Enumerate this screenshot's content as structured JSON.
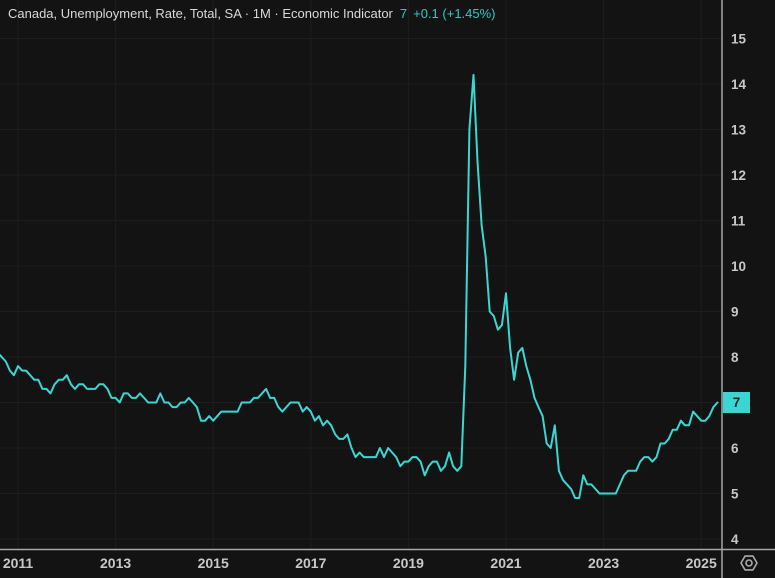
{
  "legend": {
    "title": "Canada, Unemployment, Rate, Total, SA · 1M · Economic Indicator",
    "value": "7",
    "change": "+0.1 (+1.45%)"
  },
  "y_axis": {
    "badge": "7"
  },
  "colors": {
    "background": "#131313",
    "grid": "#1e1e1e",
    "line": "#3bd6d1",
    "badge_bg": "#3bd6d1",
    "badge_text": "#0c2a2a",
    "axis_line": "#a8a8a8",
    "tick_text": "#c8c8c8",
    "title_text": "#d9d9d9",
    "accent_text": "#2fc9c4",
    "gear_icon": "#ababab"
  },
  "chart_data": {
    "type": "line",
    "title": "Canada, Unemployment, Rate, Total, SA · 1M · Economic Indicator",
    "series_name": "Canada Unemployment Rate (%, seasonally adjusted, monthly)",
    "frequency": "monthly",
    "start": "2010-08",
    "end": "2025-05",
    "ylim": [
      4,
      15
    ],
    "y_ticks": [
      4,
      5,
      6,
      7,
      8,
      9,
      10,
      11,
      12,
      13,
      14,
      15
    ],
    "x_tick_years": [
      2011,
      2013,
      2015,
      2017,
      2019,
      2021,
      2023,
      2025
    ],
    "grid": true,
    "legend_position": "top-left",
    "last_value": 7.0,
    "change_abs": "+0.1",
    "change_pct": "+1.45%",
    "peak": {
      "date": "2020-05",
      "value": 14.2
    },
    "trough": {
      "date": "2022-06",
      "value": 4.9
    },
    "values": [
      8.1,
      8.0,
      7.9,
      7.7,
      7.6,
      7.8,
      7.7,
      7.7,
      7.6,
      7.5,
      7.5,
      7.3,
      7.3,
      7.2,
      7.4,
      7.5,
      7.5,
      7.6,
      7.4,
      7.3,
      7.4,
      7.4,
      7.3,
      7.3,
      7.3,
      7.4,
      7.4,
      7.3,
      7.1,
      7.1,
      7.0,
      7.2,
      7.2,
      7.1,
      7.1,
      7.2,
      7.1,
      7.0,
      7.0,
      7.0,
      7.2,
      7.0,
      7.0,
      6.9,
      6.9,
      7.0,
      7.0,
      7.1,
      7.0,
      6.9,
      6.6,
      6.6,
      6.7,
      6.6,
      6.7,
      6.8,
      6.8,
      6.8,
      6.8,
      6.8,
      7.0,
      7.0,
      7.0,
      7.1,
      7.1,
      7.2,
      7.3,
      7.1,
      7.1,
      6.9,
      6.8,
      6.9,
      7.0,
      7.0,
      7.0,
      6.8,
      6.9,
      6.8,
      6.6,
      6.7,
      6.5,
      6.6,
      6.5,
      6.3,
      6.2,
      6.2,
      6.3,
      6.0,
      5.8,
      5.9,
      5.8,
      5.8,
      5.8,
      5.8,
      6.0,
      5.8,
      6.0,
      5.9,
      5.8,
      5.6,
      5.7,
      5.7,
      5.8,
      5.8,
      5.7,
      5.4,
      5.6,
      5.7,
      5.7,
      5.5,
      5.6,
      5.9,
      5.6,
      5.5,
      5.6,
      7.8,
      13.0,
      14.2,
      12.3,
      10.9,
      10.2,
      9.0,
      8.9,
      8.6,
      8.7,
      9.4,
      8.2,
      7.5,
      8.1,
      8.2,
      7.8,
      7.5,
      7.1,
      6.9,
      6.7,
      6.1,
      6.0,
      6.5,
      5.5,
      5.3,
      5.2,
      5.1,
      4.9,
      4.9,
      5.4,
      5.2,
      5.2,
      5.1,
      5.0,
      5.0,
      5.0,
      5.0,
      5.0,
      5.2,
      5.4,
      5.5,
      5.5,
      5.5,
      5.7,
      5.8,
      5.8,
      5.7,
      5.8,
      6.1,
      6.1,
      6.2,
      6.4,
      6.4,
      6.6,
      6.5,
      6.5,
      6.8,
      6.7,
      6.6,
      6.6,
      6.7,
      6.9,
      7.0
    ]
  }
}
